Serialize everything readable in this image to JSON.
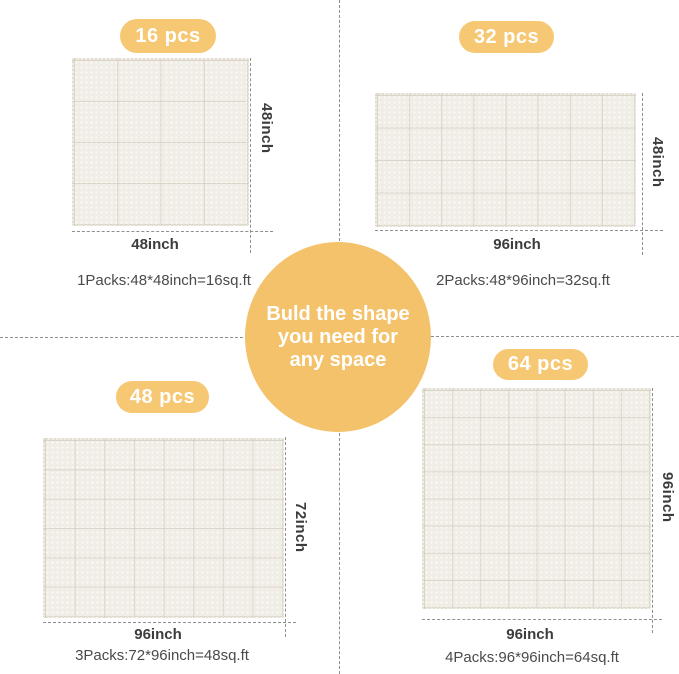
{
  "center": {
    "lines": [
      "Buld the shape",
      "you need for",
      "any space"
    ]
  },
  "colors": {
    "accent_circle": "#F5C26C",
    "badge_yellow": "#F7C873",
    "mat_base": "#F0EDE6",
    "dash_gray": "#8F8F8F",
    "dimension_label": "#3C3C3C",
    "caption_text": "#4A4A4A"
  },
  "panels": [
    {
      "badge": "16 pcs",
      "grid": "4x4",
      "width_label": "48inch",
      "height_label": "48inch",
      "caption": "1Packs:48*48inch=16sq.ft"
    },
    {
      "badge": "32 pcs",
      "grid": "8x4",
      "width_label": "96inch",
      "height_label": "48inch",
      "caption": "2Packs:48*96inch=32sq.ft"
    },
    {
      "badge": "48 pcs",
      "grid": "8x6",
      "width_label": "96inch",
      "height_label": "72inch",
      "caption": "3Packs:72*96inch=48sq.ft"
    },
    {
      "badge": "64 pcs",
      "grid": "8x8",
      "width_label": "96inch",
      "height_label": "96inch",
      "caption": "4Packs:96*96inch=64sq.ft"
    }
  ]
}
